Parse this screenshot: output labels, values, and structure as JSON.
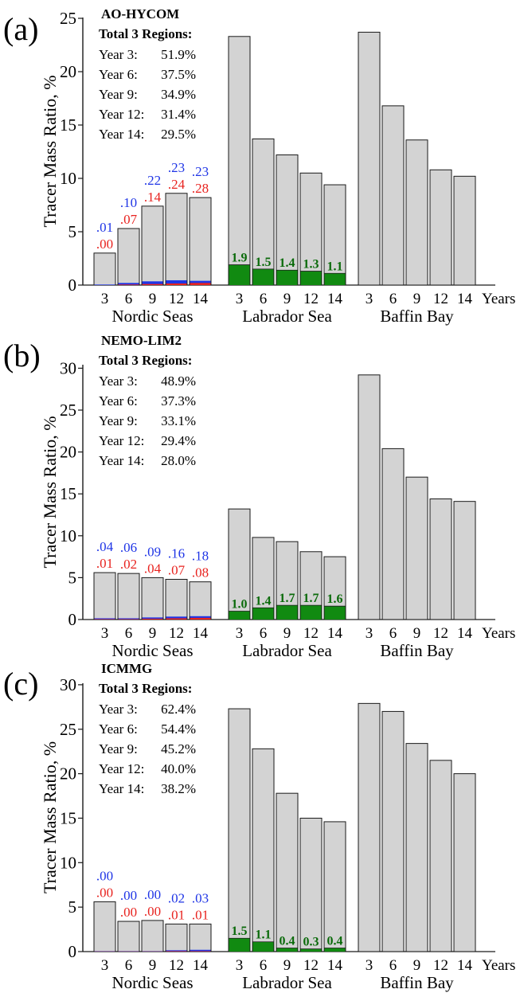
{
  "colors": {
    "bar_fill": "#d3d3d3",
    "bar_stroke": "#1a1a1a",
    "green": "#118a11",
    "green_text": "#0a6a0a",
    "blue": "#1f35e6",
    "red": "#e8231f",
    "axis": "#1a1a1a"
  },
  "chart_data": [
    {
      "type": "bar",
      "panel_label": "(a)",
      "title": "AO-HYCOM",
      "summary_heading": "Total 3 Regions:",
      "summary": [
        {
          "label": "Year 3:",
          "value": "51.9%"
        },
        {
          "label": "Year 6:",
          "value": "37.5%"
        },
        {
          "label": "Year 9:",
          "value": "34.9%"
        },
        {
          "label": "Year 12:",
          "value": "31.4%"
        },
        {
          "label": "Year 14:",
          "value": "29.5%"
        }
      ],
      "ylabel": "Tracer Mass Ratio, %",
      "ylim": [
        0,
        25
      ],
      "yticks": [
        0,
        5,
        10,
        15,
        20,
        25
      ],
      "xlabel": "Years",
      "years": [
        "3",
        "6",
        "9",
        "12",
        "14"
      ],
      "groups": [
        {
          "name": "Nordic Seas",
          "total": [
            3.0,
            5.3,
            7.4,
            8.6,
            8.2
          ],
          "blue_part": [
            0.05,
            0.2,
            0.35,
            0.45,
            0.4
          ],
          "red_part": [
            0.0,
            0.05,
            0.1,
            0.15,
            0.2
          ],
          "blue_labels": [
            ".01",
            ".10",
            ".22",
            ".23",
            ".23"
          ],
          "red_labels": [
            ".00",
            ".07",
            ".14",
            ".24",
            ".28"
          ]
        },
        {
          "name": "Labrador Sea",
          "total": [
            23.3,
            13.7,
            12.2,
            10.5,
            9.4
          ],
          "green_part": [
            1.9,
            1.5,
            1.4,
            1.3,
            1.1
          ],
          "green_labels": [
            "1.9",
            "1.5",
            "1.4",
            "1.3",
            "1.1"
          ]
        },
        {
          "name": "Baffin Bay",
          "total": [
            23.7,
            16.8,
            13.6,
            10.8,
            10.2
          ]
        }
      ]
    },
    {
      "type": "bar",
      "panel_label": "(b)",
      "title": "NEMO-LIM2",
      "summary_heading": "Total 3 Regions:",
      "summary": [
        {
          "label": "Year 3:",
          "value": "48.9%"
        },
        {
          "label": "Year 6:",
          "value": "37.3%"
        },
        {
          "label": "Year 9:",
          "value": "33.1%"
        },
        {
          "label": "Year 12:",
          "value": "29.4%"
        },
        {
          "label": "Year 14:",
          "value": "28.0%"
        }
      ],
      "ylabel": "Tracer Mass Ratio, %",
      "ylim": [
        0,
        30
      ],
      "yticks": [
        0,
        5,
        10,
        15,
        20,
        25,
        30
      ],
      "xlabel": "Years",
      "years": [
        "3",
        "6",
        "9",
        "12",
        "14"
      ],
      "groups": [
        {
          "name": "Nordic Seas",
          "total": [
            5.6,
            5.5,
            5.0,
            4.8,
            4.5
          ],
          "blue_part": [
            0.15,
            0.15,
            0.25,
            0.35,
            0.4
          ],
          "red_part": [
            0.05,
            0.05,
            0.1,
            0.15,
            0.2
          ],
          "blue_labels": [
            ".04",
            ".06",
            ".09",
            ".16",
            ".18"
          ],
          "red_labels": [
            ".01",
            ".02",
            ".04",
            ".07",
            ".08"
          ]
        },
        {
          "name": "Labrador Sea",
          "total": [
            13.2,
            9.8,
            9.3,
            8.1,
            7.5
          ],
          "green_part": [
            1.0,
            1.4,
            1.7,
            1.7,
            1.6
          ],
          "green_labels": [
            "1.0",
            "1.4",
            "1.7",
            "1.7",
            "1.6"
          ]
        },
        {
          "name": "Baffin Bay",
          "total": [
            29.2,
            20.4,
            17.0,
            14.4,
            14.1
          ]
        }
      ]
    },
    {
      "type": "bar",
      "panel_label": "(c)",
      "title": "ICMMG",
      "summary_heading": "Total 3 Regions:",
      "summary": [
        {
          "label": "Year 3:",
          "value": "62.4%"
        },
        {
          "label": "Year 6:",
          "value": "54.4%"
        },
        {
          "label": "Year 9:",
          "value": "45.2%"
        },
        {
          "label": "Year 12:",
          "value": "40.0%"
        },
        {
          "label": "Year 14:",
          "value": "38.2%"
        }
      ],
      "ylabel": "Tracer Mass Ratio, %",
      "ylim": [
        0,
        30
      ],
      "yticks": [
        0,
        5,
        10,
        15,
        20,
        25,
        30
      ],
      "xlabel": "Years",
      "years": [
        "3",
        "6",
        "9",
        "12",
        "14"
      ],
      "groups": [
        {
          "name": "Nordic Seas",
          "total": [
            5.6,
            3.4,
            3.5,
            3.1,
            3.1
          ],
          "blue_part": [
            0.05,
            0.05,
            0.05,
            0.15,
            0.2
          ],
          "red_part": [
            0.02,
            0.02,
            0.02,
            0.05,
            0.05
          ],
          "blue_labels": [
            ".00",
            ".00",
            ".00",
            ".02",
            ".03"
          ],
          "red_labels": [
            ".00",
            ".00",
            ".00",
            ".01",
            ".01"
          ]
        },
        {
          "name": "Labrador Sea",
          "total": [
            27.3,
            22.8,
            17.8,
            15.0,
            14.6
          ],
          "green_part": [
            1.5,
            1.1,
            0.4,
            0.3,
            0.4
          ],
          "green_labels": [
            "1.5",
            "1.1",
            "0.4",
            "0.3",
            "0.4"
          ]
        },
        {
          "name": "Baffin Bay",
          "total": [
            27.9,
            27.0,
            23.4,
            21.5,
            20.0
          ]
        }
      ]
    }
  ]
}
